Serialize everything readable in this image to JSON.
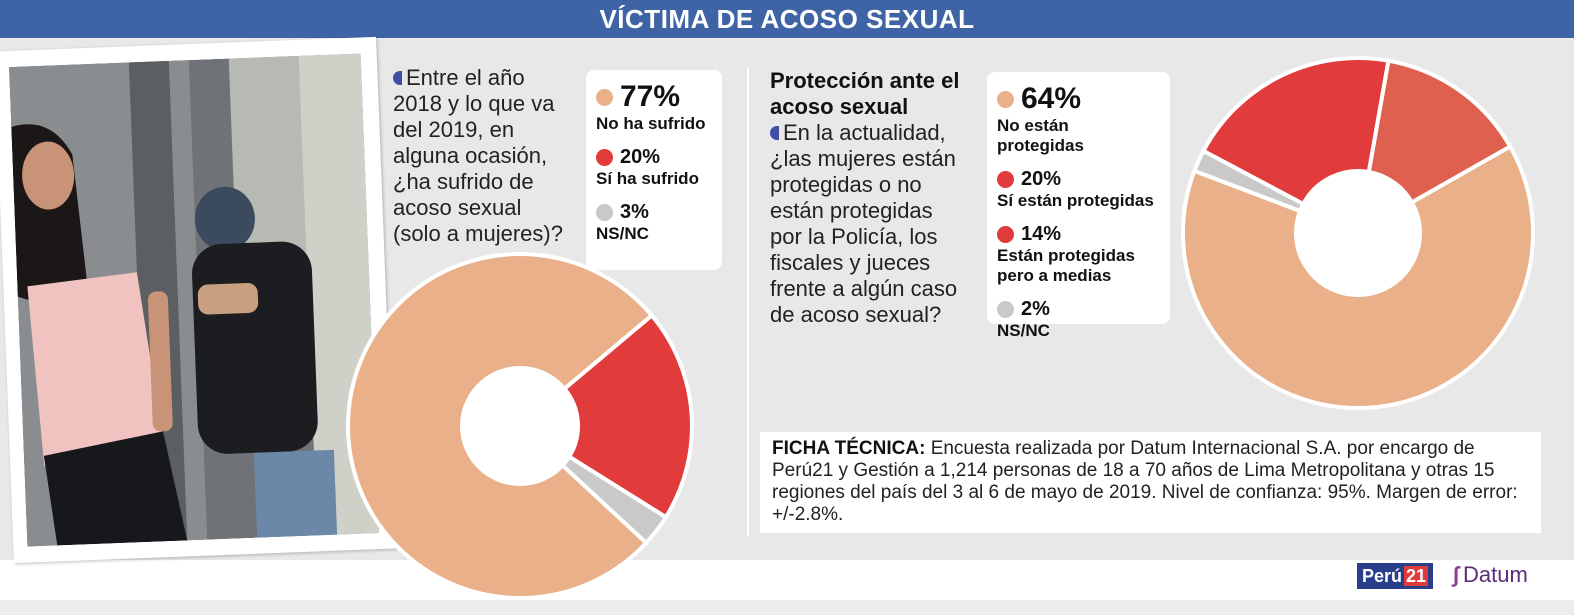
{
  "header": {
    "title": "VÍCTIMA DE ACOSO SEXUAL"
  },
  "left": {
    "question": "Entre el año 2018 y lo que va del 2019, en alguna ocasión, ¿ha sufrido de acoso sexual (solo a mujeres)?"
  },
  "right": {
    "title": "Protección ante el acoso sexual",
    "question": "En la actualidad, ¿las mujeres están protegidas o no están protegidas por la Policía, los fiscales y jueces frente a algún caso de acoso sexual?"
  },
  "ficha": {
    "label": "FICHA TÉCNICA:",
    "text": "Encuesta realizada por Datum Internacional S.A. por encargo de Perú21 y Gestión a 1,214 personas de 18 a 70 años de Lima Metropolitana y otras 15 regiones del país del 3 al 6 de mayo de 2019. Nivel de confianza: 95%. Margen de error: +/-2.8%."
  },
  "logos": {
    "peru21_a": "Perú",
    "peru21_b": "21",
    "datum": "Datum"
  },
  "icons": {
    "bullet": "half-circle-bullet-icon",
    "datum_mark": "datum-logo-icon"
  },
  "colors": {
    "header": "#3f64a6",
    "beige": "#e9b089",
    "red": "#e23b3b",
    "orange_red": "#e0604f",
    "gray": "#c9c9c9"
  },
  "chart_data": [
    {
      "type": "pie",
      "donut": true,
      "categories": [
        "No ha sufrido",
        "Sí ha sufrido",
        "NS/NC"
      ],
      "values": [
        77,
        20,
        3
      ],
      "value_labels": [
        "77%",
        "20%",
        "3%"
      ],
      "colors": [
        "#e9b089",
        "#e23b3b",
        "#c9c9c9"
      ]
    },
    {
      "type": "pie",
      "donut": true,
      "categories": [
        "No están protegidas",
        "Sí están protegidas",
        "Están protegidas pero a medias",
        "NS/NC"
      ],
      "values": [
        64,
        20,
        14,
        2
      ],
      "value_labels": [
        "64%",
        "20%",
        "14%",
        "2%"
      ],
      "colors": [
        "#e9b089",
        "#e23b3b",
        "#e0604f",
        "#c9c9c9"
      ]
    }
  ]
}
